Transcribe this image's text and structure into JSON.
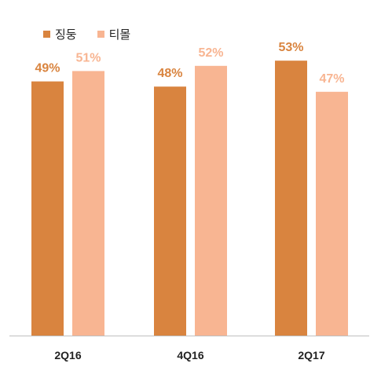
{
  "chart_data": {
    "type": "bar",
    "categories": [
      "2Q16",
      "4Q16",
      "2Q17"
    ],
    "series": [
      {
        "name": "징둥",
        "values": [
          49,
          48,
          53
        ],
        "color": "#D9843F"
      },
      {
        "name": "티몰",
        "values": [
          51,
          52,
          47
        ],
        "color": "#F8B592"
      }
    ],
    "data_labels": [
      [
        "49%",
        "48%",
        "53%"
      ],
      [
        "51%",
        "52%",
        "47%"
      ]
    ],
    "ylim": [
      0,
      60
    ],
    "legend_position": "top-left",
    "grid": false,
    "title": "",
    "xlabel": "",
    "ylabel": ""
  }
}
